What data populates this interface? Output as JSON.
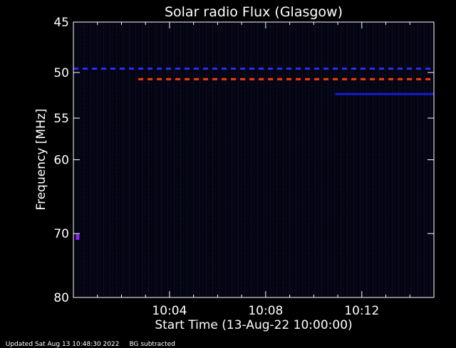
{
  "chart_data": {
    "type": "heatmap",
    "title": "Solar radio Flux (Glasgow)",
    "xlabel": "Start Time (13-Aug-22 10:00:00)",
    "ylabel": "Frequency [MHz]",
    "x_unit": "minutes after 10:00:00",
    "xlim": [
      0,
      15
    ],
    "ylim": [
      45,
      80
    ],
    "y_scale": "log",
    "x_ticks": [
      {
        "value": 4,
        "label": "10:04"
      },
      {
        "value": 8,
        "label": "10:08"
      },
      {
        "value": 12,
        "label": "10:12"
      }
    ],
    "y_ticks": [
      {
        "value": 45,
        "label": "45"
      },
      {
        "value": 50,
        "label": "50"
      },
      {
        "value": 55,
        "label": "55"
      },
      {
        "value": 60,
        "label": "60"
      },
      {
        "value": 70,
        "label": "70"
      },
      {
        "value": 80,
        "label": "80"
      }
    ],
    "background_color": "#050510",
    "features": [
      {
        "kind": "dashed",
        "freq": 49.6,
        "x_start": 0,
        "x_end": 15,
        "color": "#2a2aff"
      },
      {
        "kind": "dashed",
        "freq": 50.7,
        "x_start": 2.7,
        "x_end": 15,
        "color": "#ff3a10"
      },
      {
        "kind": "solid",
        "freq": 52.3,
        "x_start": 10.9,
        "x_end": 15,
        "color": "#1a1ad0"
      },
      {
        "kind": "spot",
        "freq": 70.5,
        "x_start": 0.1,
        "x_end": 0.25,
        "color": "#9020ff"
      }
    ]
  },
  "footer": {
    "updated": "Updated Sat Aug 13 10:48:30 2022",
    "note": "BG subtracted"
  }
}
